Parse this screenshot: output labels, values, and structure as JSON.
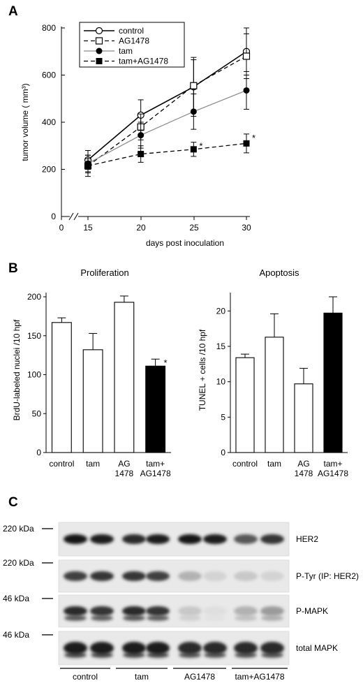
{
  "figure": {
    "panel_labels": [
      "A",
      "B",
      "C"
    ]
  },
  "chart_data": [
    {
      "id": "A",
      "type": "line",
      "xlabel": "days post inoculation",
      "ylabel": "tumor volume ( mm³)",
      "x": [
        15,
        20,
        25,
        30
      ],
      "x_ticks": [
        "0",
        "15",
        "20",
        "25",
        "30"
      ],
      "y_ticks": [
        0,
        200,
        400,
        600,
        800
      ],
      "ylim": [
        0,
        800
      ],
      "axis_break": true,
      "legend_position": "top-left",
      "series": [
        {
          "name": "control",
          "marker": "open-circle",
          "line": "solid",
          "color": "#000000",
          "values": [
            240,
            430,
            550,
            700
          ],
          "errors": [
            40,
            65,
            125,
            100
          ],
          "significant": [
            false,
            false,
            false,
            false
          ]
        },
        {
          "name": "AG1478",
          "marker": "open-square",
          "line": "dashed",
          "color": "#000000",
          "values": [
            215,
            380,
            555,
            680
          ],
          "errors": [
            30,
            55,
            110,
            95
          ],
          "significant": [
            false,
            false,
            false,
            false
          ]
        },
        {
          "name": "tam",
          "marker": "filled-circle",
          "line": "solid-thin",
          "color": "#888888",
          "values": [
            225,
            345,
            445,
            535
          ],
          "errors": [
            35,
            55,
            75,
            80
          ],
          "significant": [
            false,
            false,
            false,
            false
          ]
        },
        {
          "name": "tam+AG1478",
          "marker": "filled-square",
          "line": "dashed",
          "color": "#000000",
          "values": [
            215,
            265,
            285,
            310
          ],
          "errors": [
            45,
            35,
            30,
            40
          ],
          "significant": [
            false,
            false,
            true,
            true
          ]
        }
      ],
      "annotation": "*"
    },
    {
      "id": "B-left",
      "type": "bar",
      "title": "Proliferation",
      "ylabel": "BrdU-labeled nuclei /10 hpf",
      "categories": [
        "control",
        "tam",
        "AG\n1478",
        "tam+\nAG1478"
      ],
      "values": [
        167,
        132,
        193,
        111
      ],
      "errors": [
        6,
        21,
        8,
        9
      ],
      "fills": [
        "#ffffff",
        "#ffffff",
        "#ffffff",
        "#000000"
      ],
      "ylim": [
        0,
        200
      ],
      "y_ticks": [
        0,
        50,
        100,
        150,
        200
      ],
      "significant": [
        false,
        false,
        false,
        true
      ],
      "annotation": "*"
    },
    {
      "id": "B-right",
      "type": "bar",
      "title": "Apoptosis",
      "ylabel": "TUNEL + cells /10 hpf",
      "categories": [
        "control",
        "tam",
        "AG\n1478",
        "tam+\nAG1478"
      ],
      "values": [
        13.4,
        16.3,
        9.7,
        19.7
      ],
      "errors": [
        0.5,
        3.3,
        2.2,
        2.3
      ],
      "fills": [
        "#ffffff",
        "#ffffff",
        "#ffffff",
        "#000000"
      ],
      "ylim": [
        0,
        22
      ],
      "y_ticks": [
        0,
        5,
        10,
        15,
        20
      ]
    }
  ],
  "blot": {
    "size_markers": [
      "220 kDa",
      "220 kDa",
      "46 kDa",
      "46 kDa"
    ],
    "rows": [
      "HER2",
      "P-Tyr (IP: HER2)",
      "P-MAPK",
      "total MAPK"
    ],
    "groups": [
      "control",
      "tam",
      "AG1478",
      "tam+AG1478"
    ],
    "lane_intensities": [
      [
        1.0,
        0.95,
        0.9,
        0.95,
        1.0,
        0.95,
        0.7,
        0.85
      ],
      [
        0.8,
        0.85,
        0.85,
        0.8,
        0.3,
        0.15,
        0.2,
        0.15
      ],
      [
        0.9,
        0.85,
        0.9,
        0.85,
        0.2,
        0.1,
        0.3,
        0.4
      ],
      [
        0.95,
        0.95,
        0.95,
        0.95,
        0.9,
        0.9,
        0.9,
        0.9
      ]
    ]
  }
}
